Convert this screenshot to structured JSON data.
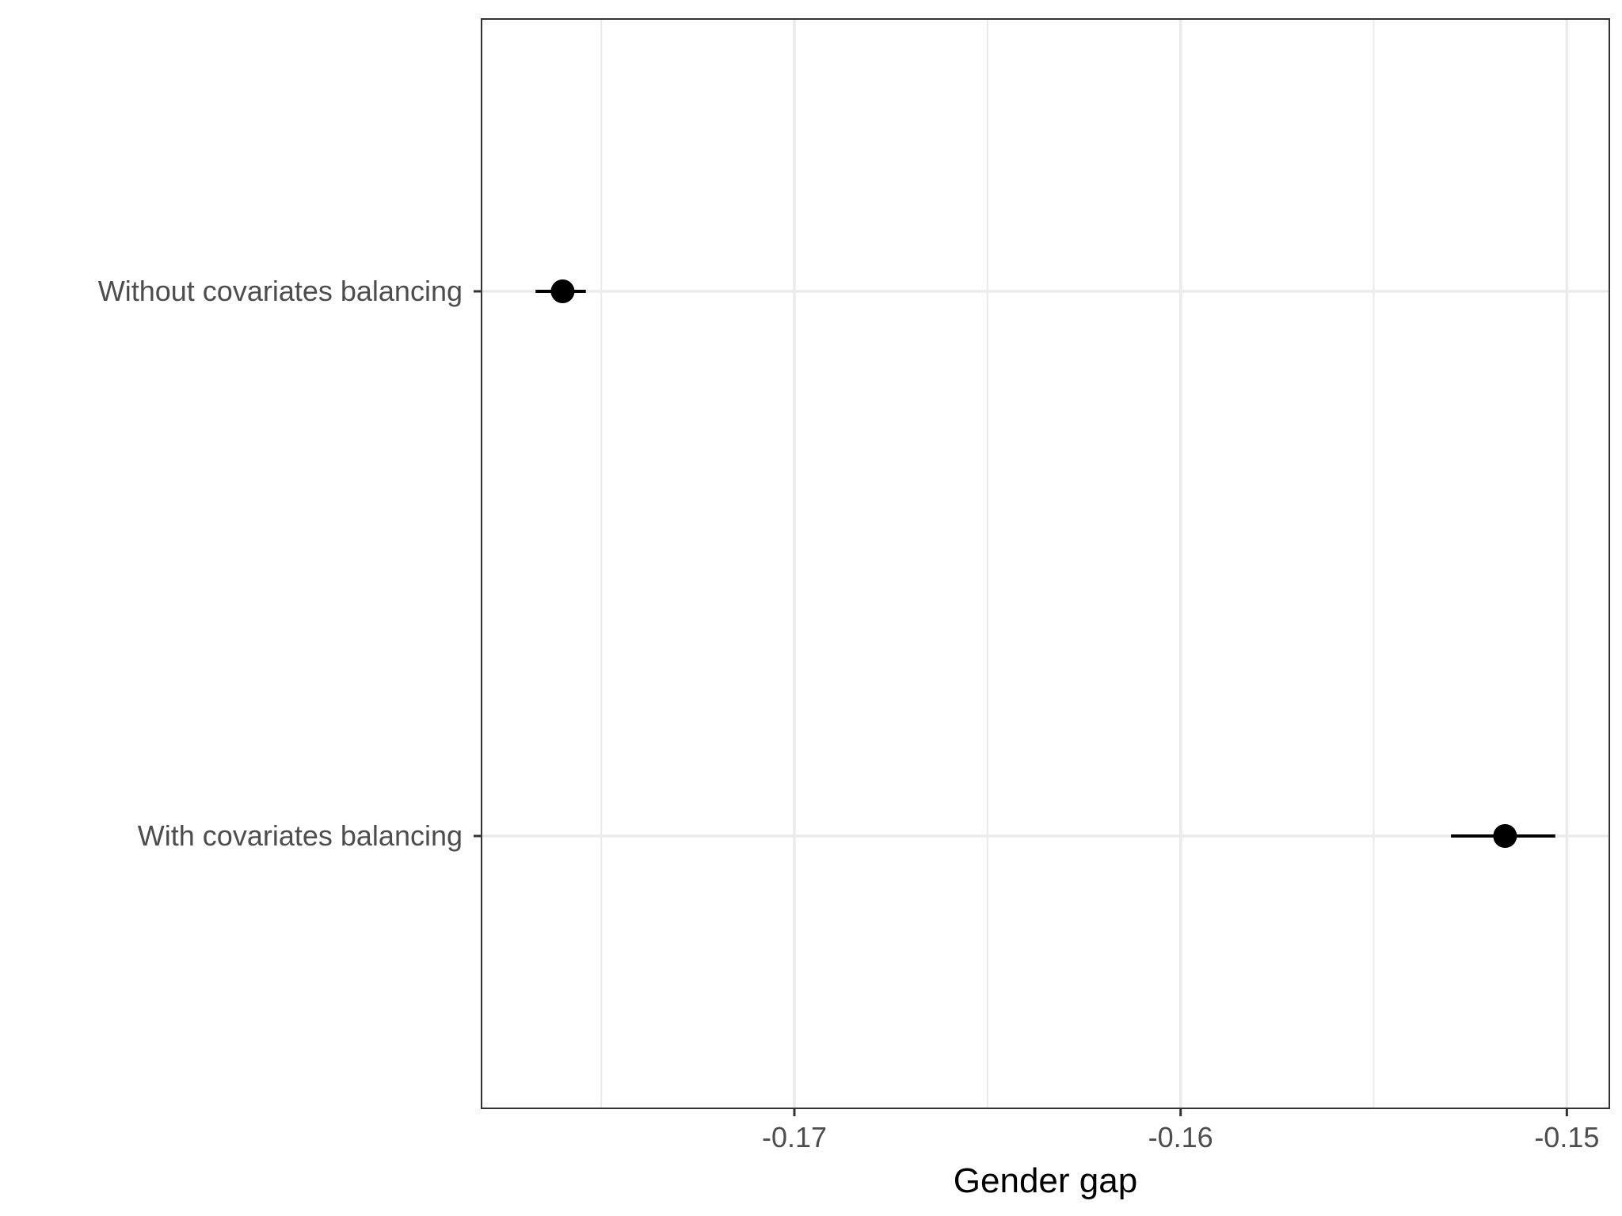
{
  "chart_data": {
    "type": "scatter",
    "xlabel": "Gender gap",
    "ylabel": "",
    "xlim": [
      -0.1781,
      -0.1489
    ],
    "x_ticks": [
      -0.17,
      -0.16,
      -0.15
    ],
    "x_tick_labels": [
      "-0.17",
      "-0.16",
      "-0.15"
    ],
    "x_minor_gridlines": [
      -0.175,
      -0.165,
      -0.155
    ],
    "categories": [
      "Without covariates balancing",
      "With covariates balancing"
    ],
    "points": [
      {
        "category": "Without covariates balancing",
        "estimate": -0.176,
        "ci_low": -0.1767,
        "ci_high": -0.1754
      },
      {
        "category": "With covariates balancing",
        "estimate": -0.1516,
        "ci_low": -0.153,
        "ci_high": -0.1503
      }
    ],
    "grid": true,
    "colors": {
      "point": "#000000",
      "grid": "#ebebeb",
      "panel_border": "#333333",
      "tick_text": "#4d4d4d"
    }
  }
}
